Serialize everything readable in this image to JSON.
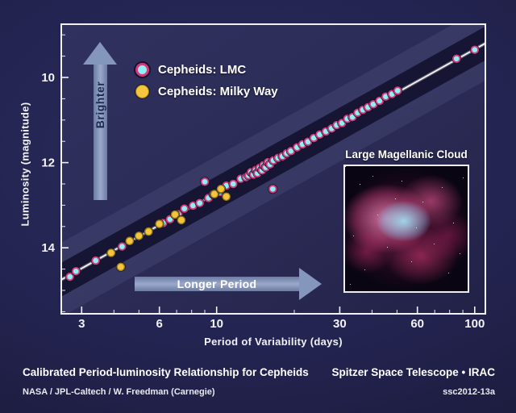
{
  "page": {
    "title_left": "Calibrated Period-luminosity Relationship for Cepheids",
    "title_right": "Spitzer Space Telescope • IRAC",
    "credit_left": "NASA / JPL-Caltech / W. Freedman (Carnegie)",
    "credit_right": "ssc2012-13a"
  },
  "chart_data": {
    "type": "scatter",
    "xlabel": "Period of Variability (days)",
    "ylabel": "Luminosity (magnitude)",
    "x_scale": "log",
    "x_range": [
      2.5,
      110
    ],
    "y_range": [
      8.75,
      15.55
    ],
    "y_inverted": true,
    "x_ticks_major": [
      3,
      6,
      10,
      30,
      60,
      100
    ],
    "x_ticks_minor": [
      4,
      5,
      7,
      8,
      9,
      20,
      40,
      50,
      70,
      80,
      90
    ],
    "y_ticks_major": [
      10,
      12,
      14
    ],
    "y_ticks_minor": [
      9,
      9.5,
      10.5,
      11,
      11.5,
      12.5,
      13,
      13.5,
      14.5,
      15,
      15.5
    ],
    "grid": false,
    "trend_line": {
      "x": [
        2.5,
        110
      ],
      "y": [
        14.75,
        9.2
      ]
    },
    "series": [
      {
        "name": "Cepheids: LMC",
        "marker": {
          "fill": "#8feef6",
          "stroke": "#d23a78"
        },
        "points": [
          [
            2.7,
            14.68
          ],
          [
            2.85,
            14.55
          ],
          [
            3.4,
            14.3
          ],
          [
            4.3,
            13.97
          ],
          [
            6.2,
            13.42
          ],
          [
            6.6,
            13.33
          ],
          [
            7.1,
            13.21
          ],
          [
            7.5,
            13.08
          ],
          [
            8.1,
            13.01
          ],
          [
            8.6,
            12.95
          ],
          [
            9.0,
            12.45
          ],
          [
            9.3,
            12.83
          ],
          [
            9.7,
            12.74
          ],
          [
            10.3,
            12.69
          ],
          [
            10.9,
            12.54
          ],
          [
            11.6,
            12.5
          ],
          [
            12.4,
            12.38
          ],
          [
            13.0,
            12.34
          ],
          [
            13.3,
            12.3
          ],
          [
            13.6,
            12.22
          ],
          [
            13.9,
            12.28
          ],
          [
            14.2,
            12.17
          ],
          [
            14.4,
            12.25
          ],
          [
            14.7,
            12.12
          ],
          [
            15.0,
            12.18
          ],
          [
            15.2,
            12.06
          ],
          [
            15.5,
            12.11
          ],
          [
            15.8,
            11.99
          ],
          [
            16.1,
            12.04
          ],
          [
            16.5,
            12.62
          ],
          [
            16.6,
            11.95
          ],
          [
            17.3,
            11.89
          ],
          [
            18.0,
            11.85
          ],
          [
            18.7,
            11.78
          ],
          [
            19.4,
            11.73
          ],
          [
            20.5,
            11.64
          ],
          [
            21.5,
            11.57
          ],
          [
            22.6,
            11.51
          ],
          [
            23.8,
            11.42
          ],
          [
            25.1,
            11.34
          ],
          [
            26.5,
            11.27
          ],
          [
            27.9,
            11.2
          ],
          [
            29.2,
            11.12
          ],
          [
            30.6,
            11.07
          ],
          [
            32.1,
            10.97
          ],
          [
            33.6,
            10.93
          ],
          [
            35.2,
            10.83
          ],
          [
            36.9,
            10.76
          ],
          [
            38.6,
            10.7
          ],
          [
            40.5,
            10.63
          ],
          [
            42.8,
            10.55
          ],
          [
            45.2,
            10.45
          ],
          [
            47.8,
            10.39
          ],
          [
            50.3,
            10.31
          ],
          [
            85,
            9.56
          ],
          [
            100,
            9.35
          ]
        ]
      },
      {
        "name": "Cepheids: Milky Way",
        "marker": {
          "fill": "#f3c63e",
          "stroke": "#9a7a18"
        },
        "points": [
          [
            3.9,
            14.12
          ],
          [
            4.25,
            14.45
          ],
          [
            4.6,
            13.84
          ],
          [
            5.0,
            13.72
          ],
          [
            5.45,
            13.62
          ],
          [
            6.0,
            13.44
          ],
          [
            6.9,
            13.22
          ],
          [
            7.3,
            13.35
          ],
          [
            9.8,
            12.74
          ],
          [
            10.4,
            12.62
          ],
          [
            10.9,
            12.8
          ]
        ]
      }
    ],
    "annotations": {
      "brighter_label": "Brighter",
      "longer_period_label": "Longer Period",
      "inset_label": "Large Magellanic Cloud"
    },
    "legend_position": "top-left-inside"
  }
}
